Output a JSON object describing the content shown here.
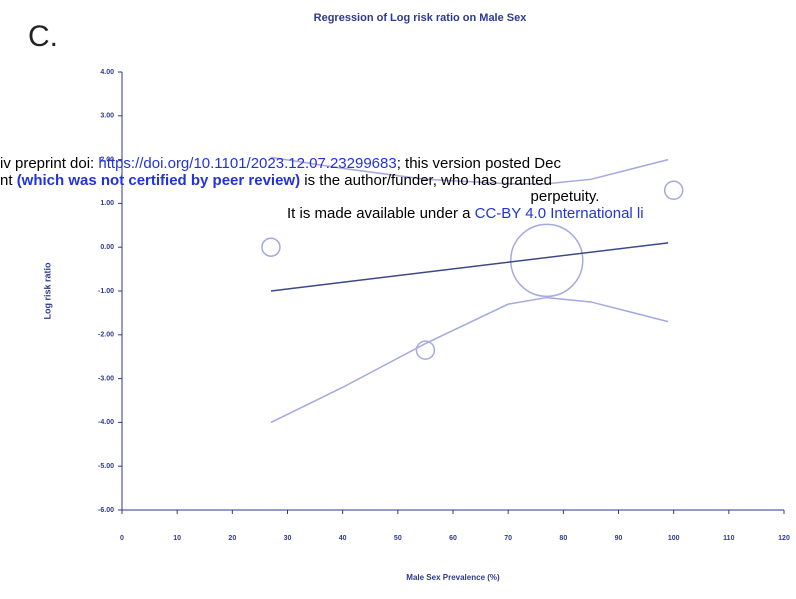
{
  "panel_label": "C.",
  "chart_data": {
    "type": "bubble",
    "title": "Regression of Log risk ratio on Male Sex",
    "xlabel": "Male Sex Prevalence (%)",
    "ylabel": "Log risk ratio",
    "xlim": [
      0,
      120
    ],
    "ylim": [
      -6,
      4
    ],
    "xticks": [
      0,
      10,
      20,
      30,
      40,
      50,
      60,
      70,
      80,
      90,
      100,
      110,
      120
    ],
    "yticks": [
      {
        "value": 4,
        "label": "4.00"
      },
      {
        "value": 3,
        "label": "3.00"
      },
      {
        "value": 2,
        "label": "2.00"
      },
      {
        "value": 1,
        "label": "1.00"
      },
      {
        "value": 0,
        "label": "0.00"
      },
      {
        "value": -1,
        "label": "-1.00"
      },
      {
        "value": -2,
        "label": "-2.00"
      },
      {
        "value": -3,
        "label": "-3.00"
      },
      {
        "value": -4,
        "label": "-4.00"
      },
      {
        "value": -5,
        "label": "-5.00"
      },
      {
        "value": -6,
        "label": "-6.00"
      }
    ],
    "bubble_color": "#a4a9de",
    "fit_color": "#3d4888",
    "ci_color": "#a4a9de",
    "bubbles": {
      "x": [
        27,
        55,
        77,
        100
      ],
      "values": [
        0.0,
        -2.35,
        -0.3,
        1.3
      ],
      "sizes": [
        1,
        1,
        16,
        1
      ]
    },
    "fit": {
      "x": [
        27,
        99
      ],
      "values": [
        -1.0,
        0.1
      ]
    },
    "ci_upper": {
      "x": [
        27,
        40,
        55,
        70,
        77,
        85,
        99
      ],
      "values": [
        2.05,
        1.8,
        1.55,
        1.45,
        1.45,
        1.55,
        2.0
      ]
    },
    "ci_lower": {
      "x": [
        27,
        40,
        55,
        70,
        77,
        85,
        99
      ],
      "values": [
        -4.0,
        -3.2,
        -2.2,
        -1.3,
        -1.15,
        -1.25,
        -1.7
      ]
    }
  },
  "watermark": {
    "line1": {
      "pre": "iv preprint doi: ",
      "link": "https://doi.org/10.1101/2023.12.07.23299683",
      "post": "; this version posted Dec"
    },
    "line2": {
      "pre": "nt  ",
      "bold": "(which was not certified by peer review)",
      "post": " is the author/funder, who has granted"
    },
    "line3": "perpetuity.",
    "line4": {
      "pre": "It is made available under a ",
      "link": "CC-BY 4.0 International li"
    }
  }
}
